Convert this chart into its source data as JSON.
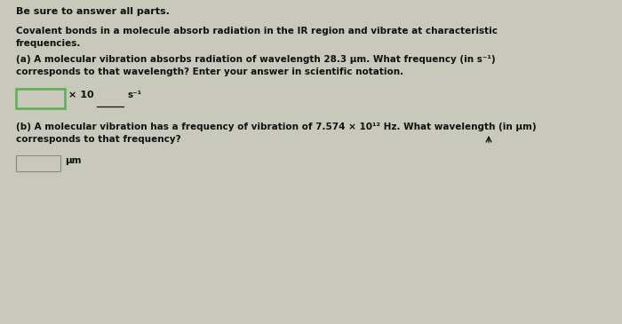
{
  "bg_color": "#c8c8bc",
  "title_line": "Be sure to answer all parts.",
  "intro_line1": "Covalent bonds in a molecule absorb radiation in the IR region and vibrate at characteristic",
  "intro_line2": "frequencies.",
  "part_a_line1": "(a) A molecular vibration absorbs radiation of wavelength 28.3 μm. What frequency (in s⁻¹)",
  "part_a_line2": "corresponds to that wavelength? Enter your answer in scientific notation.",
  "part_a_box_label": "× 10",
  "part_a_underscore": "___",
  "part_a_unit": "s⁻¹",
  "part_b_line1": "(b) A molecular vibration has a frequency of vibration of 7.574 × 10¹² Hz. What wavelength (in μm)",
  "part_b_line2": "corresponds to that frequency?",
  "part_b_unit": "μm",
  "box_color_a": "#5aaf50",
  "box_color_b": "#b0b0a0",
  "text_color": "#111111",
  "font_size_title": 8.0,
  "font_size_body": 7.5
}
